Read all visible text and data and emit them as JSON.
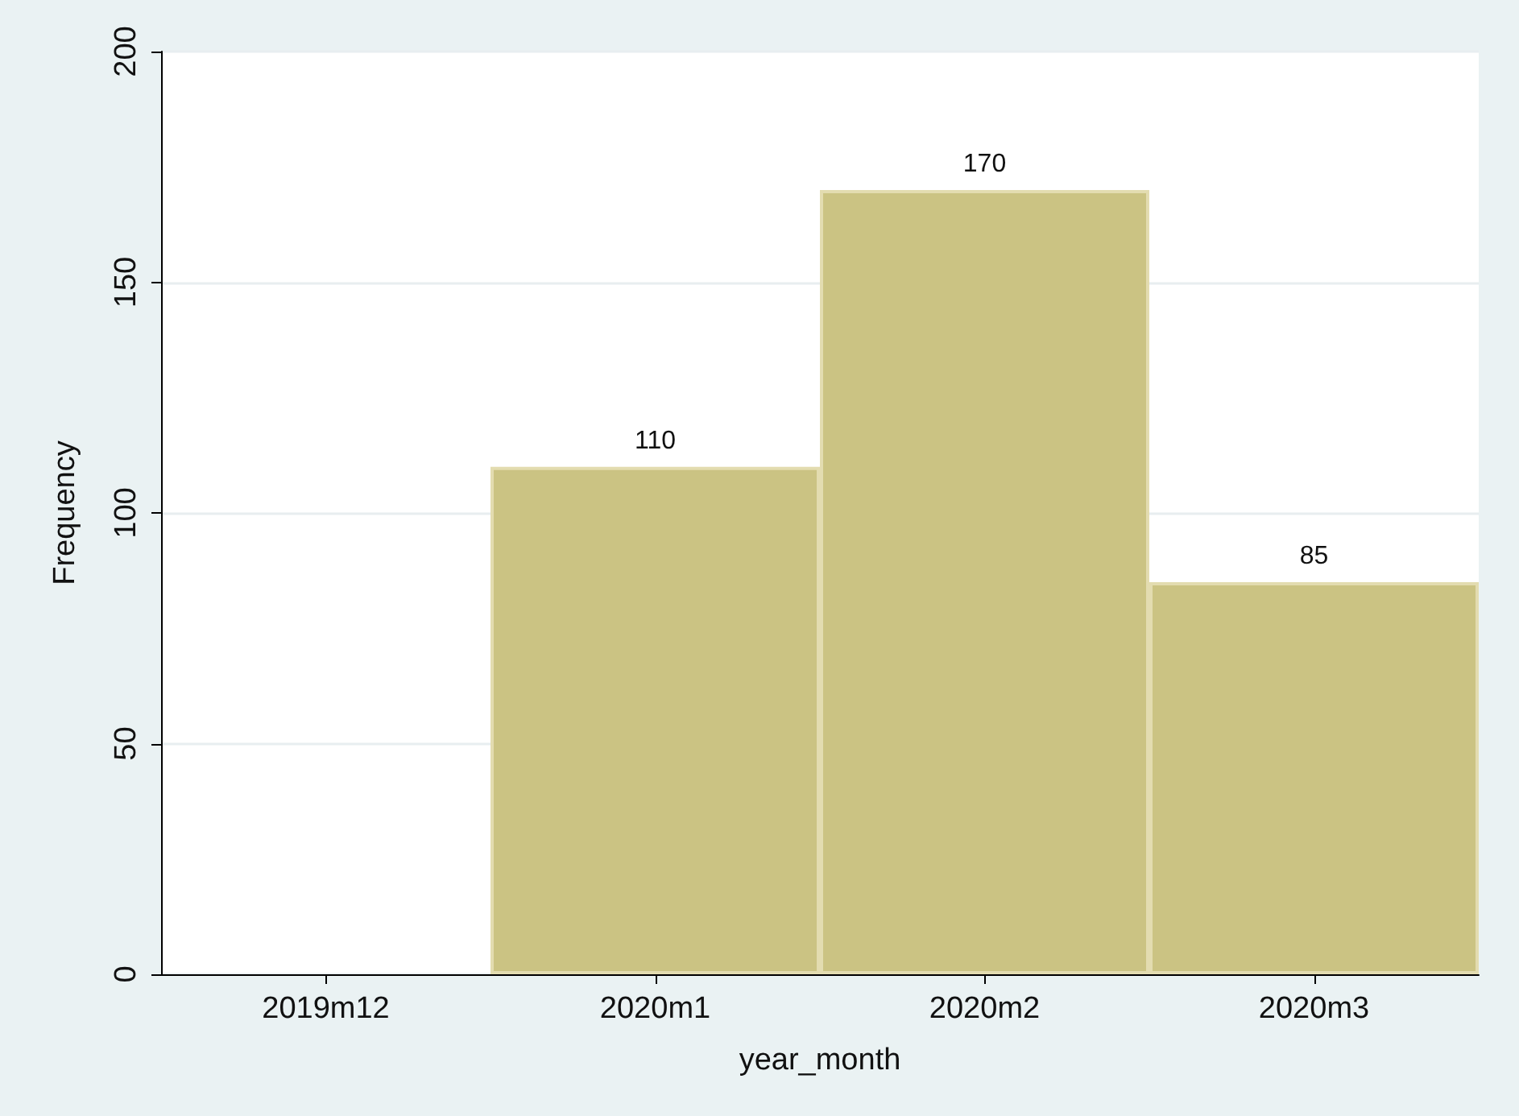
{
  "chart_data": {
    "type": "bar",
    "xlabel": "year_month",
    "ylabel": "Frequency",
    "categories": [
      "2019m12",
      "2020m1",
      "2020m2",
      "2020m3"
    ],
    "values": [
      null,
      110,
      170,
      85
    ],
    "color": "#cbc383",
    "data_labels": true,
    "ylim": [
      0,
      200
    ],
    "yticks": [
      0,
      50,
      100,
      150,
      200
    ],
    "grid": "y"
  }
}
